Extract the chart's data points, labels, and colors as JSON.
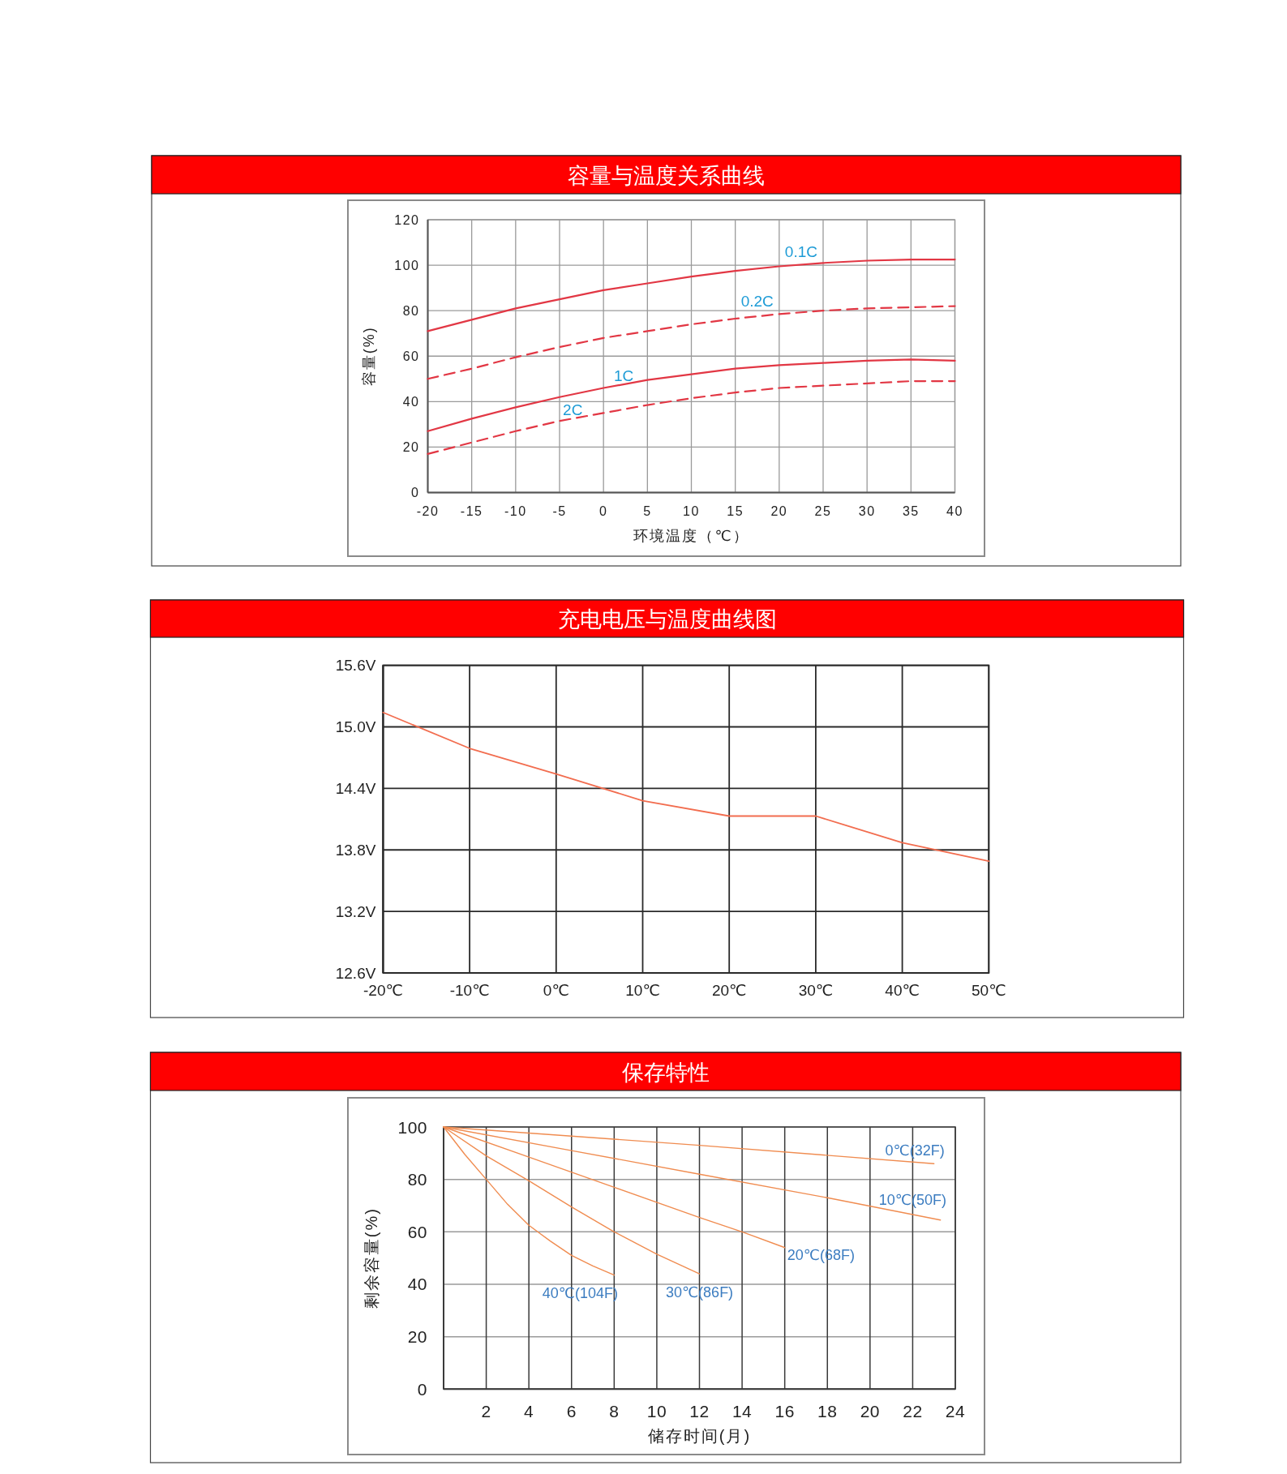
{
  "chart_data": [
    {
      "type": "line",
      "title": "容量与温度关系曲线",
      "xlabel": "环境温度（℃）",
      "ylabel": "容量(%)",
      "x": [
        -20,
        -15,
        -10,
        -5,
        0,
        5,
        10,
        15,
        20,
        25,
        30,
        35,
        40
      ],
      "xlim": [
        -20,
        40
      ],
      "xticks": [
        -20,
        -15,
        -10,
        -5,
        0,
        5,
        10,
        15,
        20,
        25,
        30,
        35,
        40
      ],
      "ylim": [
        0,
        120
      ],
      "yticks": [
        0,
        20,
        40,
        60,
        80,
        100,
        120
      ],
      "grid": true,
      "series": [
        {
          "color": "#e23744",
          "line_style": "solid",
          "values": [
            71,
            76,
            81,
            85,
            89,
            92,
            95,
            97.5,
            99.5,
            101,
            102,
            102.5,
            102.5
          ]
        },
        {
          "color": "#e23744",
          "line_style": "dashed",
          "values": [
            50,
            54.5,
            59.5,
            64,
            68,
            71,
            74,
            76.5,
            78.5,
            80,
            81,
            81.5,
            82
          ]
        },
        {
          "color": "#e23744",
          "line_style": "solid",
          "values": [
            27,
            32.5,
            37.5,
            42,
            46,
            49.5,
            52,
            54.5,
            56,
            57,
            58,
            58.5,
            58
          ]
        },
        {
          "color": "#e23744",
          "line_style": "dashed",
          "values": [
            17,
            22,
            27,
            31.5,
            35,
            38.5,
            41.5,
            44,
            46,
            47,
            48,
            49,
            49
          ]
        }
      ],
      "annotations": [
        {
          "text": "0.1C",
          "x": 22.5,
          "y": 100.2
        },
        {
          "text": "0.2C",
          "x": 17.5,
          "y": 77.5
        },
        {
          "text": "1C",
          "x": 2.3,
          "y": 47.6
        },
        {
          "text": "2C",
          "x": -3.5,
          "y": 32.5
        }
      ]
    },
    {
      "type": "line",
      "title": "充电电压与温度曲线图",
      "x": [
        -20,
        -10,
        0,
        10,
        20,
        30,
        40,
        50
      ],
      "xlim": [
        -20,
        50
      ],
      "xticks": [
        {
          "value": -20,
          "label": "-20℃"
        },
        {
          "value": -10,
          "label": "-10℃"
        },
        {
          "value": 0,
          "label": "0℃"
        },
        {
          "value": 10,
          "label": "10℃"
        },
        {
          "value": 20,
          "label": "20℃"
        },
        {
          "value": 30,
          "label": "30℃"
        },
        {
          "value": 40,
          "label": "40℃"
        },
        {
          "value": 50,
          "label": "50℃"
        }
      ],
      "ylim": [
        12.6,
        15.6
      ],
      "yticks": [
        {
          "value": 12.6,
          "label": "12.6V"
        },
        {
          "value": 13.2,
          "label": "13.2V"
        },
        {
          "value": 13.8,
          "label": "13.8V"
        },
        {
          "value": 14.4,
          "label": "14.4V"
        },
        {
          "value": 15.0,
          "label": "15.0V"
        },
        {
          "value": 15.6,
          "label": "15.6V"
        }
      ],
      "grid": true,
      "series": [
        {
          "color": "#f26d4f",
          "values": [
            15.14,
            14.79,
            14.54,
            14.28,
            14.13,
            14.13,
            13.87,
            13.69
          ]
        }
      ]
    },
    {
      "type": "line",
      "title": "保存特性",
      "xlabel": "储存时间(月)",
      "ylabel": "剩余容量(%)",
      "xlim": [
        0,
        24
      ],
      "xticks": [
        2,
        4,
        6,
        8,
        10,
        12,
        14,
        16,
        18,
        20,
        22,
        24
      ],
      "ylim": [
        0,
        100
      ],
      "yticks": [
        0,
        20,
        40,
        60,
        80,
        100
      ],
      "grid": true,
      "series": [
        {
          "color": "#f08c50",
          "x": [
            0,
            12,
            23
          ],
          "values": [
            100,
            93,
            86
          ]
        },
        {
          "color": "#f08c50",
          "x": [
            0,
            6,
            12,
            18,
            23.3
          ],
          "values": [
            100,
            91,
            82,
            73,
            64.5
          ]
        },
        {
          "color": "#f08c50",
          "x": [
            0,
            4,
            8,
            12,
            14,
            16
          ],
          "values": [
            100,
            88.5,
            77,
            65.5,
            60,
            54
          ]
        },
        {
          "color": "#f08c50",
          "x": [
            0,
            2,
            4,
            6,
            8,
            10,
            12
          ],
          "values": [
            100,
            89,
            79.5,
            69.5,
            60,
            51.5,
            44
          ]
        },
        {
          "color": "#f08c50",
          "x": [
            0,
            1,
            2,
            3,
            4,
            5,
            6,
            7,
            8
          ],
          "values": [
            100,
            89.5,
            80,
            70.5,
            62.5,
            56.5,
            51,
            47,
            43.5
          ]
        }
      ],
      "annotations": [
        {
          "text": "0℃(32F)",
          "x": 22.1,
          "y": 86.6
        },
        {
          "text": "10℃(50F)",
          "x": 22,
          "y": 66.6
        },
        {
          "text": "20℃(68F)",
          "x": 16,
          "y": 54
        },
        {
          "text": "30℃(86F)",
          "x": 12,
          "y": 44
        },
        {
          "text": "40℃(104F)",
          "x": 8,
          "y": 43.5
        }
      ]
    }
  ]
}
